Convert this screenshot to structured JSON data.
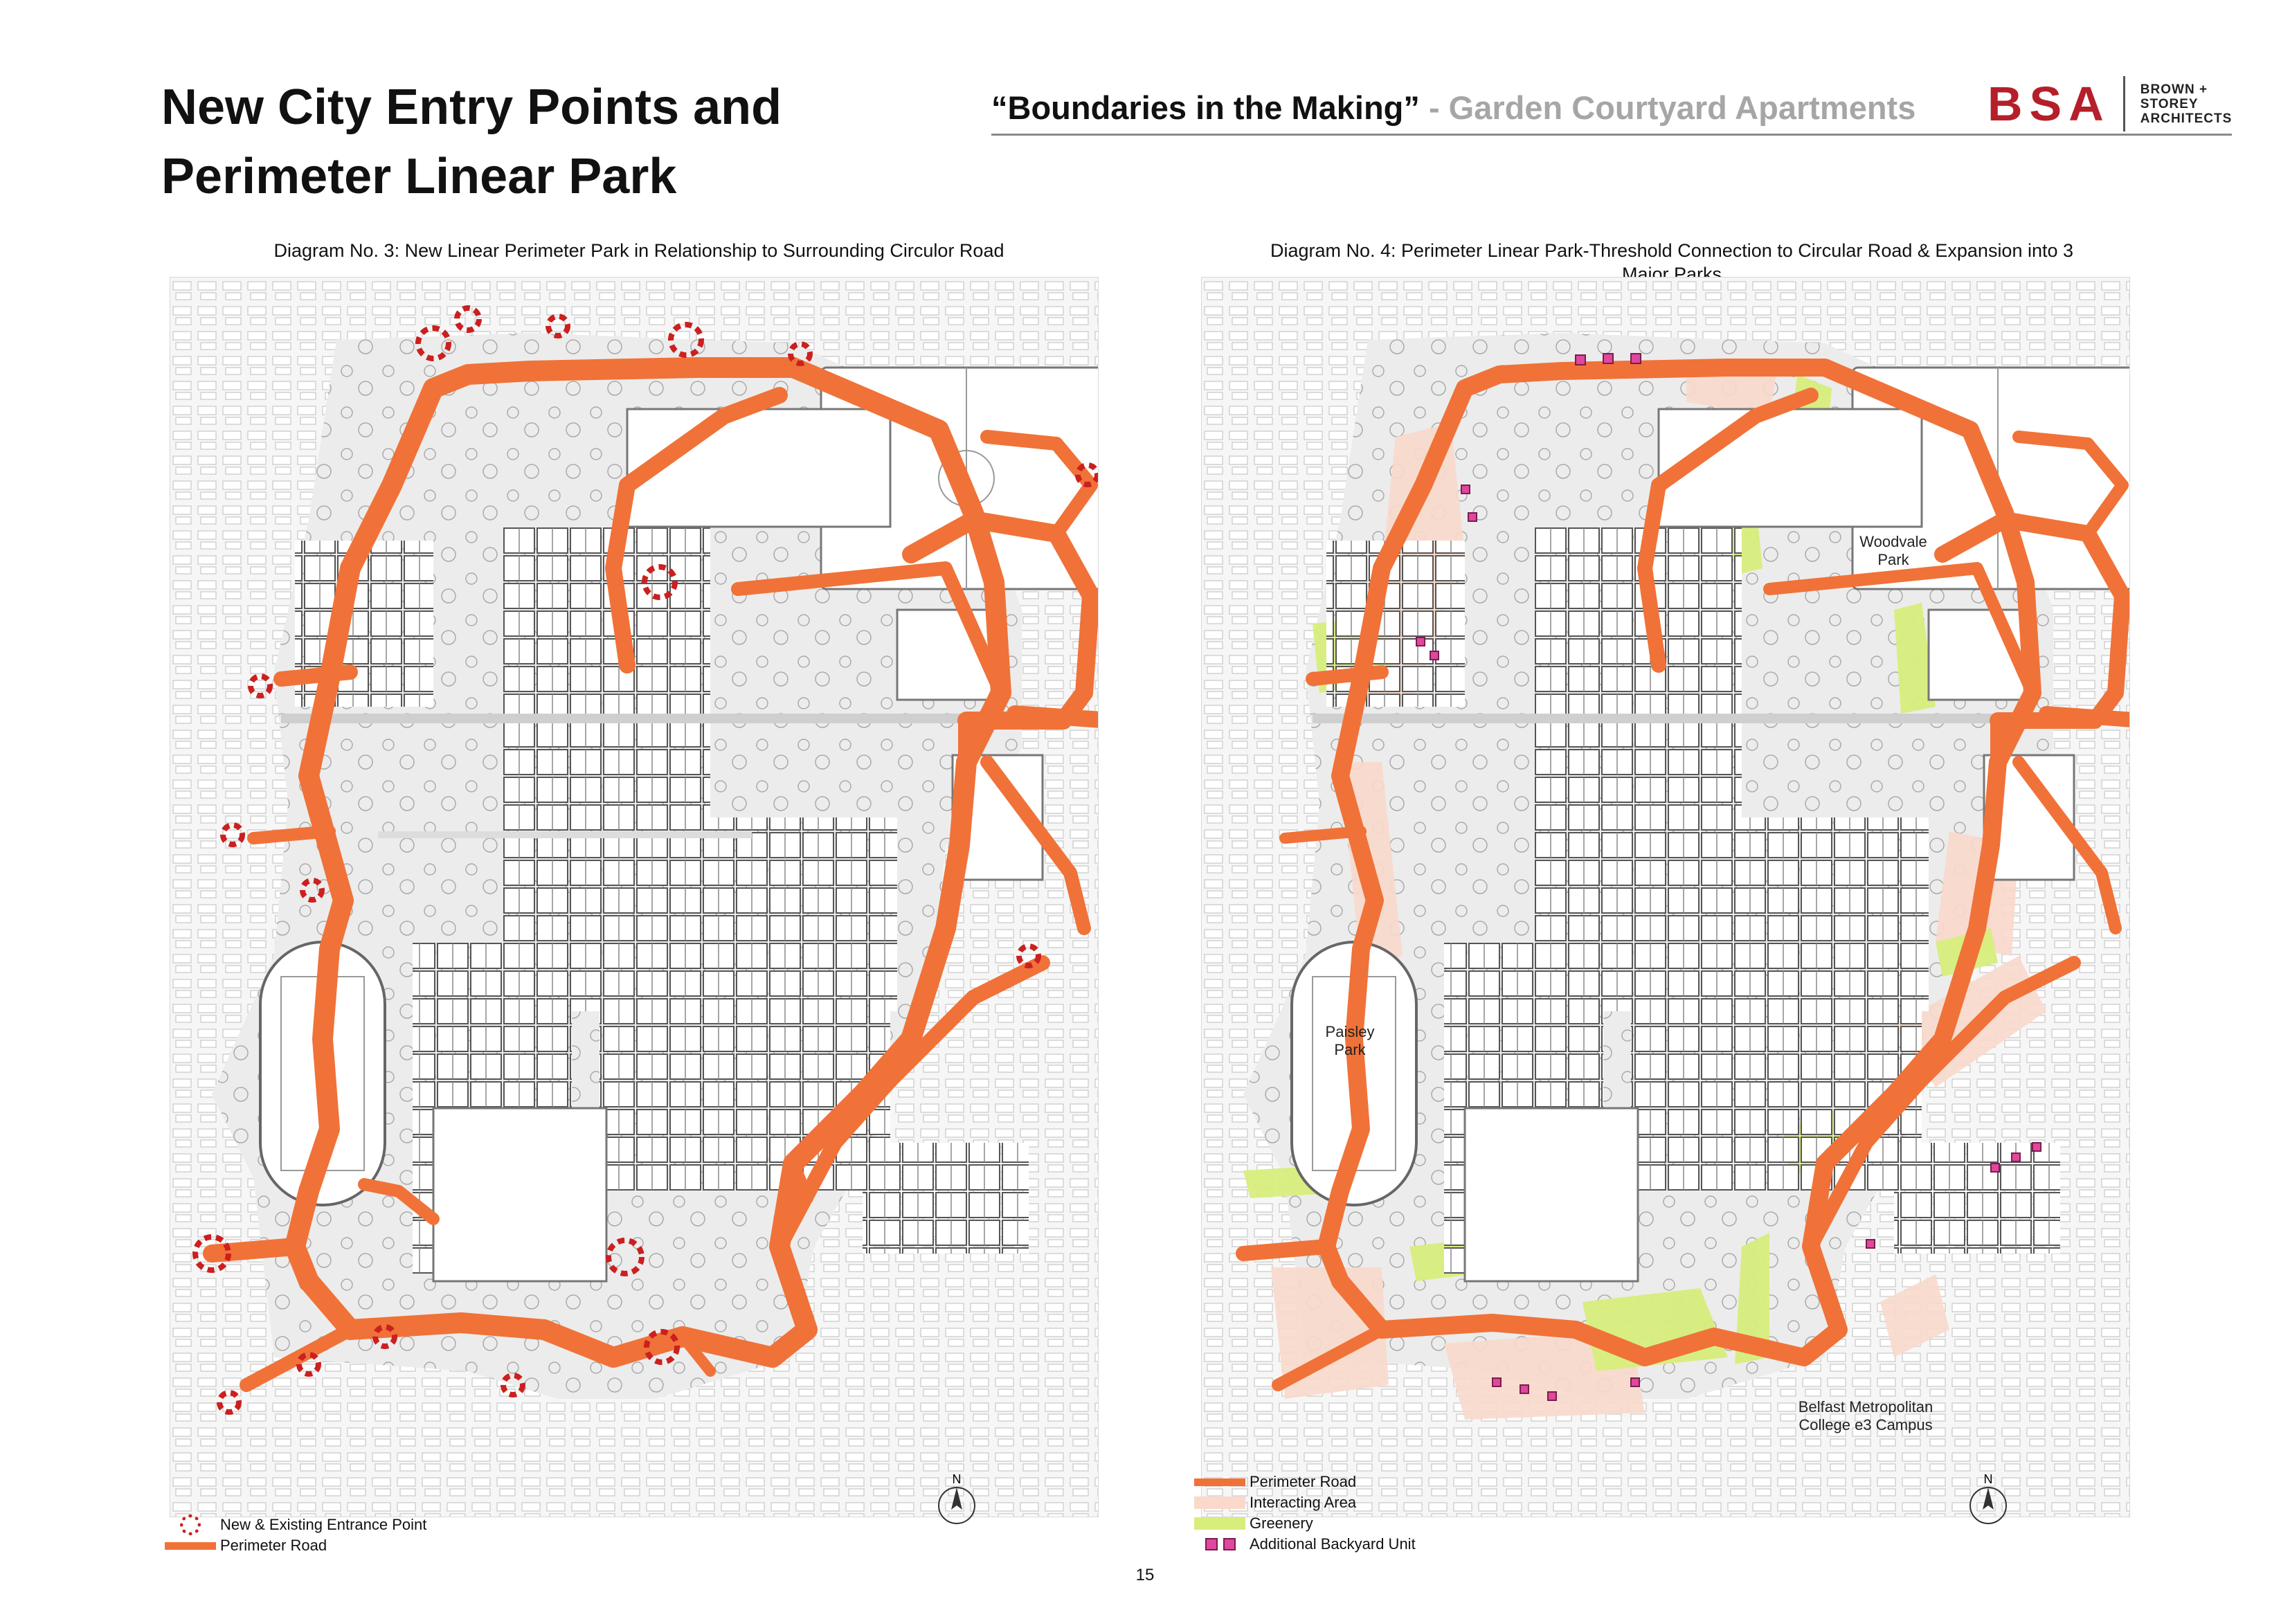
{
  "header": {
    "title_line1": "New City Entry Points and",
    "title_line2": "Perimeter Linear Park",
    "subtitle_quote": "“Boundaries in the Making”",
    "subtitle_rest": " - Garden Courtyard Apartments"
  },
  "logo": {
    "mark": "BSA",
    "line1": "BROWN +",
    "line2": "STOREY",
    "line3": "ARCHITECTS"
  },
  "diagram3": {
    "caption": "Diagram No. 3: New Linear Perimeter Park in Relationship to Surrounding Circulor Road",
    "legend": [
      {
        "label": "New & Existing Entrance Point",
        "icon": "entrance-point-icon"
      },
      {
        "label": "Perimeter Road",
        "icon": "perimeter-road-line"
      }
    ],
    "north_label": "N"
  },
  "diagram4": {
    "caption_line1": "Diagram No. 4: Perimeter Linear Park-Threshold Connection to Circular Road & Expansion into 3",
    "caption_line2": "Major Parks",
    "labels": {
      "woodvale_1": "Woodvale",
      "woodvale_2": "Park",
      "paisley_1": "Paisley",
      "paisley_2": "Park",
      "belfast_1": "Belfast Metropolitan",
      "belfast_2": "College e3 Campus"
    },
    "legend": [
      {
        "label": "Perimeter Road",
        "icon": "perimeter-road-line"
      },
      {
        "label": "Interacting Area",
        "icon": "interacting-area-swatch"
      },
      {
        "label": "Greenery",
        "icon": "greenery-swatch"
      },
      {
        "label": "Additional Backyard Unit",
        "icon": "backyard-unit-icon"
      }
    ],
    "north_label": "N"
  },
  "colors": {
    "perimeter_road": "#f07238",
    "entrance_point": "#cc1f1f",
    "interacting_area": "#fad9cc",
    "greenery": "#d7ee7c",
    "backyard_unit": "#e0479e",
    "brand_red": "#b51f2a"
  },
  "page_number": "15"
}
